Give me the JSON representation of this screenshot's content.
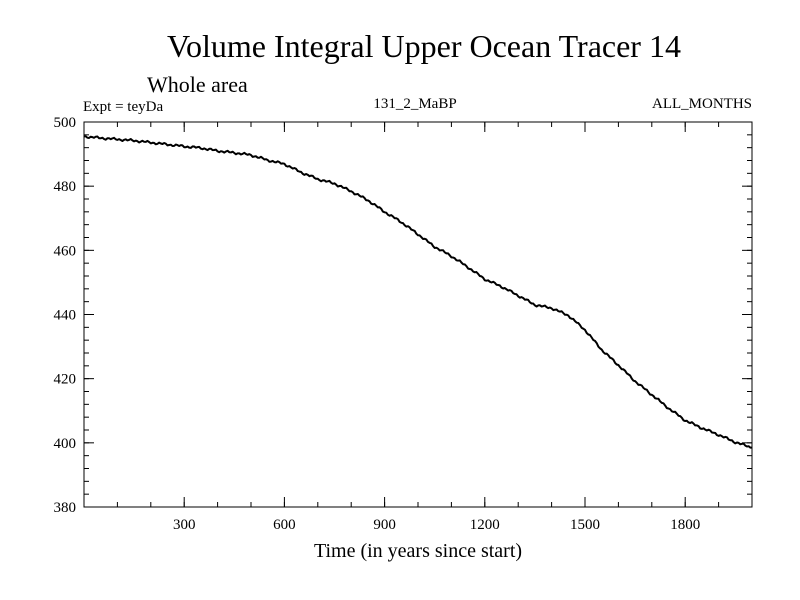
{
  "chart_data": {
    "type": "line",
    "title": "Volume Integral Upper Ocean Tracer 14",
    "subtitle": "Whole area",
    "experiment_label": "Expt = teyDa",
    "run_label": "131_2_MaBP",
    "period_label": "ALL_MONTHS",
    "xlabel": "Time (in years since start)",
    "ylabel": "",
    "xlim": [
      0,
      2000
    ],
    "ylim": [
      380,
      500
    ],
    "x_ticks": [
      300,
      600,
      900,
      1200,
      1500,
      1800
    ],
    "y_ticks": [
      380,
      400,
      420,
      440,
      460,
      480,
      500
    ],
    "x_minor_step": 100,
    "y_minor_step": 4,
    "grid": false,
    "series": [
      {
        "name": "Volume Integral Upper Ocean Tracer 14",
        "color": "#000000",
        "x": [
          0,
          50,
          100,
          150,
          200,
          250,
          300,
          350,
          400,
          450,
          500,
          550,
          600,
          650,
          700,
          750,
          800,
          850,
          900,
          950,
          1000,
          1050,
          1100,
          1150,
          1200,
          1250,
          1300,
          1350,
          1400,
          1450,
          1500,
          1550,
          1600,
          1650,
          1700,
          1750,
          1800,
          1850,
          1900,
          1950,
          2000
        ],
        "values": [
          495.5,
          495.0,
          494.6,
          494.2,
          493.6,
          493.0,
          492.4,
          491.9,
          491.0,
          490.4,
          489.7,
          488.1,
          486.9,
          484.3,
          482.2,
          480.8,
          478.4,
          475.6,
          472.0,
          468.8,
          465.0,
          461.1,
          458.2,
          454.7,
          451.0,
          448.7,
          445.9,
          443.0,
          442.0,
          439.7,
          435.2,
          429.0,
          424.2,
          419.2,
          415.0,
          410.8,
          407.0,
          404.6,
          402.5,
          400.2,
          398.5
        ]
      }
    ]
  }
}
